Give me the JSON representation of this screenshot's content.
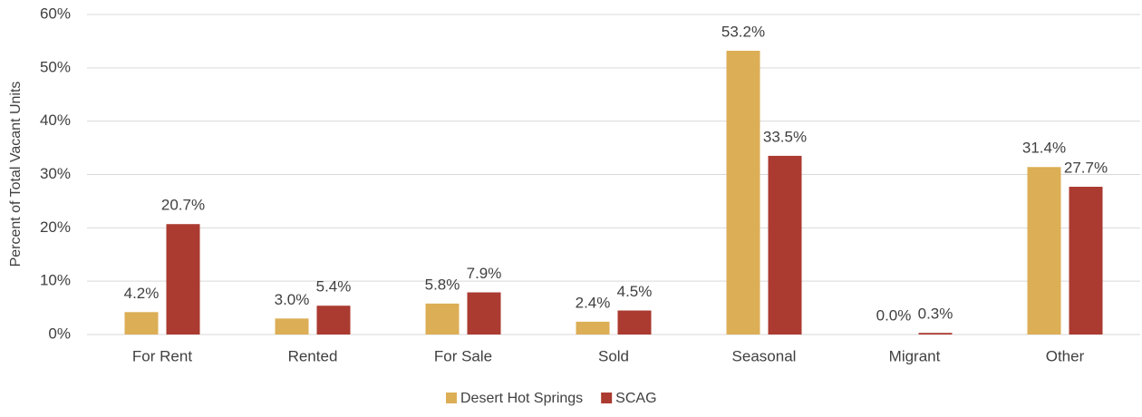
{
  "chart_data": {
    "type": "bar",
    "y_axis_label": "Percent of Total Vacant Units",
    "categories": [
      "For Rent",
      "Rented",
      "For Sale",
      "Sold",
      "Seasonal",
      "Migrant",
      "Other"
    ],
    "series": [
      {
        "name": "Desert Hot Springs",
        "color": "#dcae56",
        "values": [
          4.2,
          3.0,
          5.8,
          2.4,
          53.2,
          0.0,
          31.4
        ],
        "value_labels": [
          "4.2%",
          "3.0%",
          "5.8%",
          "2.4%",
          "53.2%",
          "0.0%",
          "31.4%"
        ]
      },
      {
        "name": "SCAG",
        "color": "#ab3a30",
        "values": [
          20.7,
          5.4,
          7.9,
          4.5,
          33.5,
          0.3,
          27.7
        ],
        "value_labels": [
          "20.7%",
          "5.4%",
          "7.9%",
          "4.5%",
          "33.5%",
          "0.3%",
          "27.7%"
        ]
      }
    ],
    "ylim": [
      0,
      60
    ],
    "yticks": [
      {
        "value": 0,
        "label": "0%"
      },
      {
        "value": 10,
        "label": "10%"
      },
      {
        "value": 20,
        "label": "20%"
      },
      {
        "value": 30,
        "label": "30%"
      },
      {
        "value": 40,
        "label": "40%"
      },
      {
        "value": 50,
        "label": "50%"
      },
      {
        "value": 60,
        "label": "60%"
      }
    ],
    "grid": true,
    "legend": "bottom"
  }
}
